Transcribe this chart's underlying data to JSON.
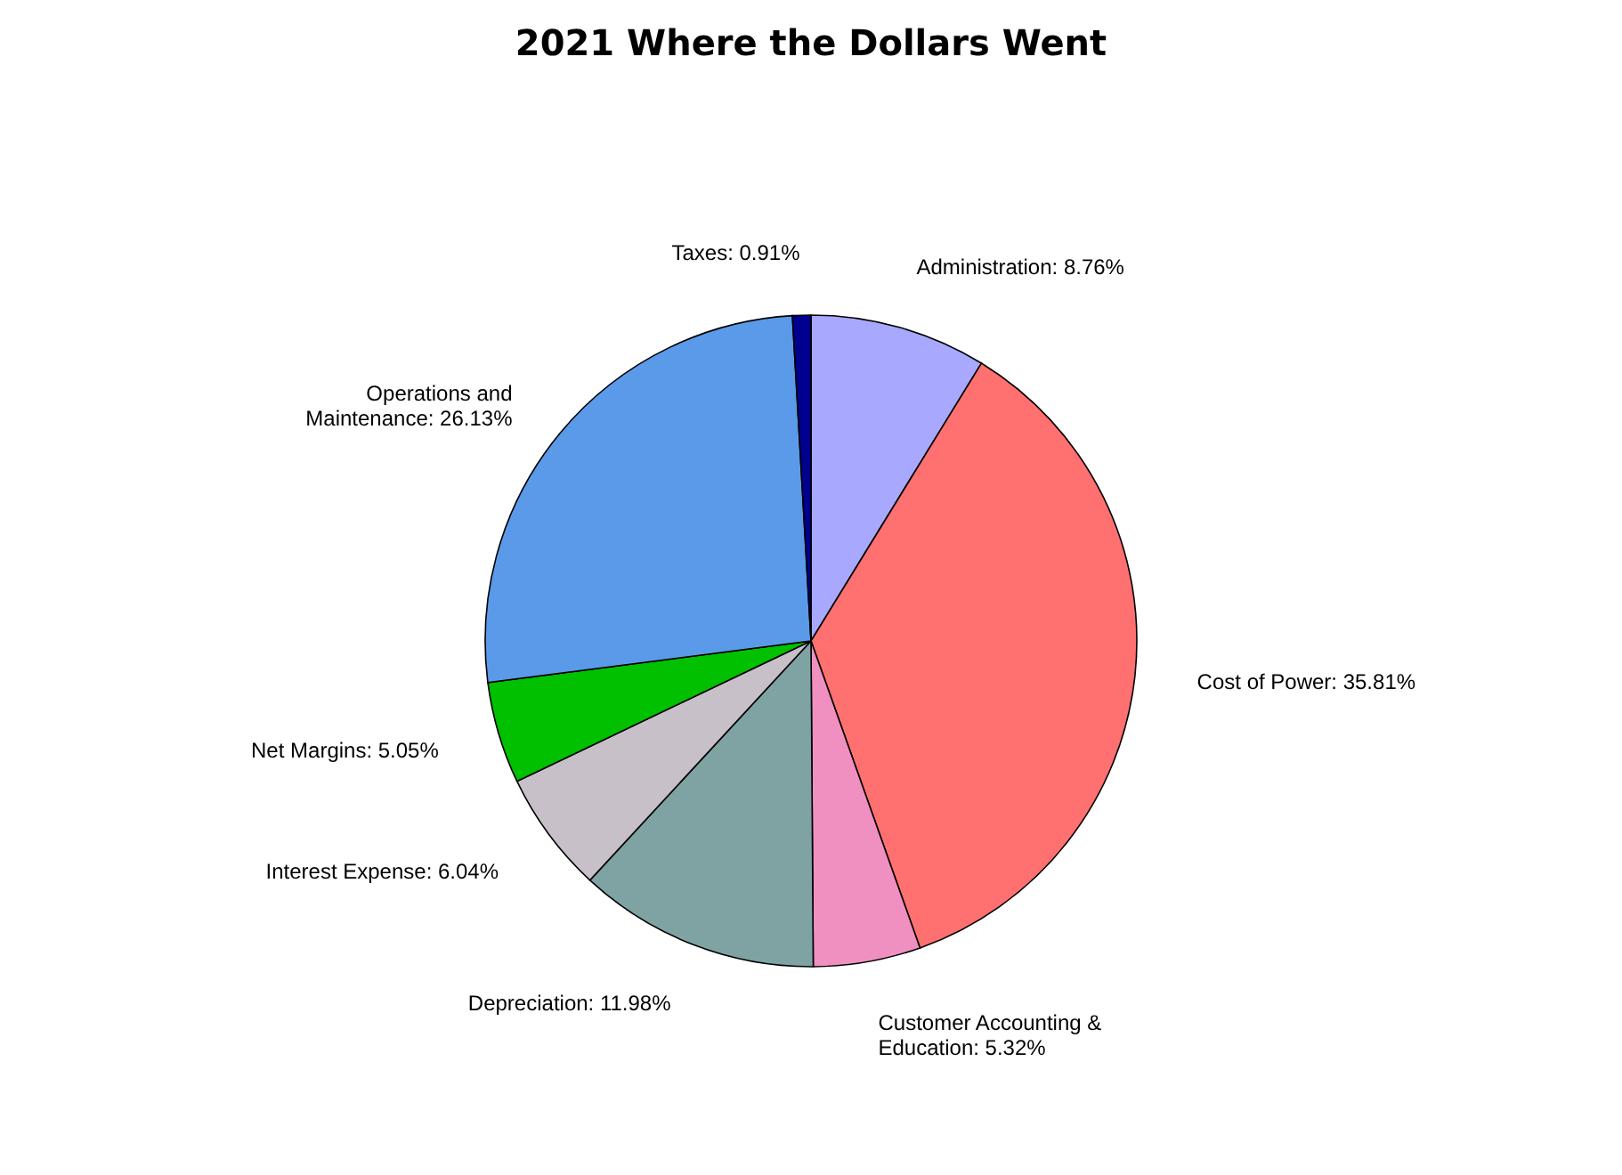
{
  "chart_data": {
    "type": "pie",
    "title": "2021 Where the Dollars Went",
    "categories": [
      "Administration",
      "Cost of Power",
      "Customer Accounting & Education",
      "Depreciation",
      "Interest Expense",
      "Net Margins",
      "Operations and Maintenance",
      "Taxes"
    ],
    "values": [
      8.76,
      35.81,
      5.32,
      11.98,
      6.04,
      5.05,
      26.13,
      0.91
    ],
    "value_labels": [
      "8.76%",
      "35.81%",
      "5.32%",
      "11.98%",
      "6.04%",
      "5.05%",
      "26.13%",
      "0.91%"
    ],
    "colors": [
      "#a8a8ff",
      "#ff7070",
      "#f090c0",
      "#7fa3a3",
      "#c8c0c8",
      "#00c000",
      "#5a9ae8",
      "#000090"
    ],
    "legend": false
  }
}
